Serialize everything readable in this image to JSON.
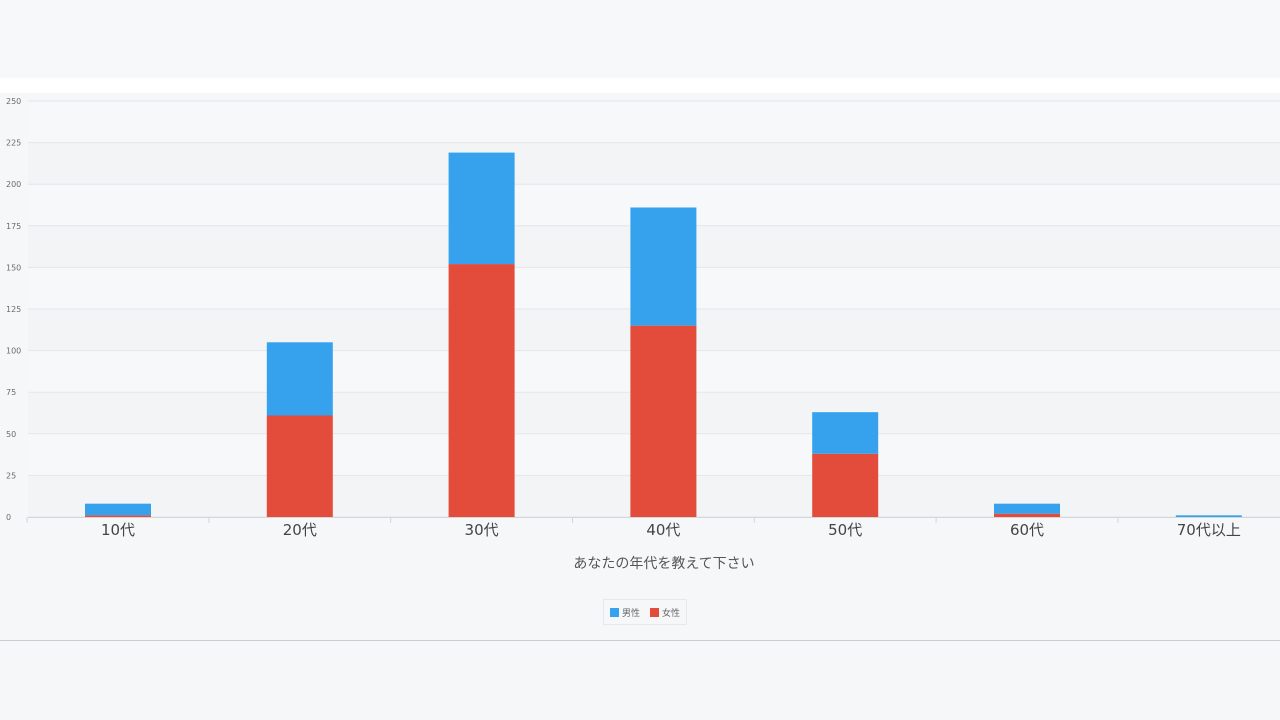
{
  "chart_data": {
    "type": "bar",
    "stacked": true,
    "categories": [
      "10代",
      "20代",
      "30代",
      "40代",
      "50代",
      "60代",
      "70代以上"
    ],
    "series": [
      {
        "name": "女性",
        "color": "#e34b3a",
        "values": [
          1,
          61,
          152,
          115,
          38,
          2,
          0
        ]
      },
      {
        "name": "男性",
        "color": "#36a2ee",
        "values": [
          7,
          44,
          67,
          71,
          25,
          6,
          1
        ]
      }
    ],
    "xlabel": "あなたの年代を教えて下さい",
    "ylabel": "",
    "ylim": [
      0,
      250
    ],
    "yticks": [
      0,
      25,
      50,
      75,
      100,
      125,
      150,
      175,
      200,
      225,
      250
    ],
    "grid": true,
    "legend_position": "bottom-center",
    "legend_order": [
      "男性",
      "女性"
    ]
  }
}
